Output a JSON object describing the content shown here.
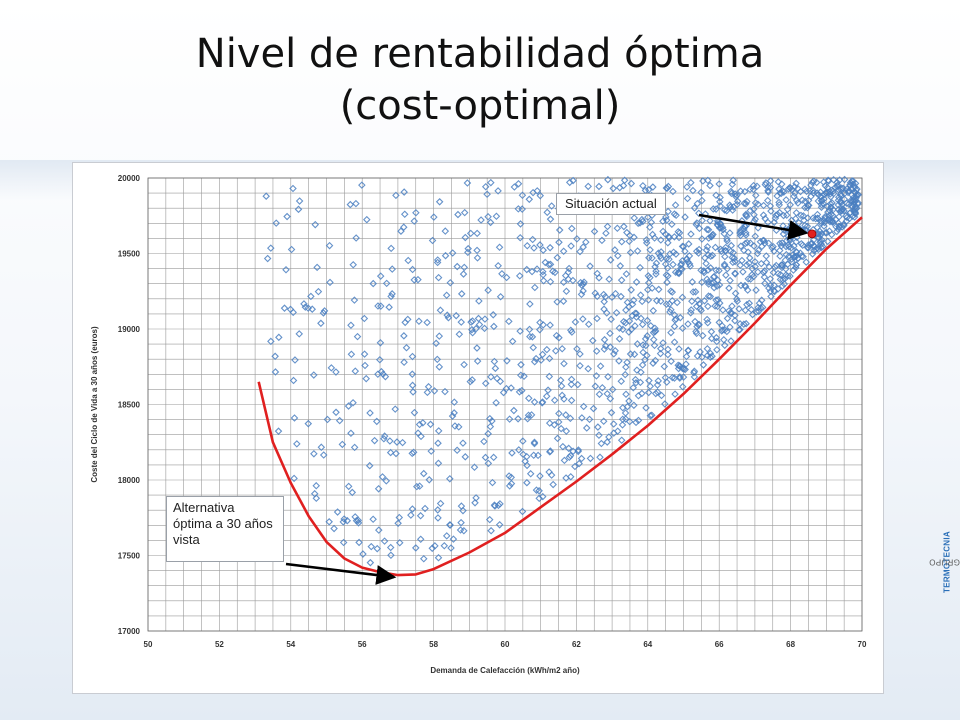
{
  "slide": {
    "title_line1": "Nivel de rentabilidad óptima",
    "title_line2": "(cost-optimal)",
    "brand_prefix": "©GRUPO",
    "brand_name": "TERMOTECNIA"
  },
  "annotations": {
    "current": {
      "label": "Situación actual",
      "x": 68.6,
      "y": 19630
    },
    "optimal": {
      "label": "Alternativa óptima a 30 años vista",
      "x": 57.0,
      "y": 17370
    }
  },
  "colors": {
    "scatter": "#4a7fc1",
    "frontier": "#e02020",
    "current_point": "#e02020",
    "grid": "#9a9a9a"
  },
  "chart_data": {
    "type": "scatter",
    "title": "",
    "xlabel": "Demanda de Calefacción  (kWh/m2 año)",
    "ylabel": "Coste del Ciclo de Vida a 30 años (euros)",
    "xlim": [
      50,
      70
    ],
    "ylim": [
      17000,
      20000
    ],
    "x_ticks": [
      "50",
      "52",
      "54",
      "56",
      "58",
      "60",
      "62",
      "64",
      "66",
      "68",
      "70"
    ],
    "y_ticks": [
      "17000",
      "17500",
      "18000",
      "18500",
      "19000",
      "19500",
      "20000"
    ],
    "grid": true,
    "grid_x_step": 0.5,
    "grid_y_step": 100,
    "marker": "diamond-open",
    "series_scatter": {
      "description_count": 1400,
      "frontier_rule": "points lie above the cost-optimal frontier curve",
      "seed": 7
    },
    "frontier_curve": {
      "x": [
        53.1,
        53.5,
        54.0,
        54.5,
        55.0,
        55.5,
        56.0,
        56.5,
        57.0,
        57.5,
        58.0,
        59.0,
        60.0,
        61.0,
        62.0,
        63.0,
        64.0,
        65.0,
        66.0,
        67.0,
        68.0,
        69.0,
        70.0
      ],
      "y": [
        18650,
        18250,
        17980,
        17760,
        17590,
        17480,
        17420,
        17390,
        17370,
        17375,
        17410,
        17520,
        17650,
        17820,
        17990,
        18170,
        18360,
        18570,
        18800,
        19040,
        19290,
        19530,
        19740
      ]
    },
    "current_point": {
      "x": 68.6,
      "y": 19630
    }
  }
}
